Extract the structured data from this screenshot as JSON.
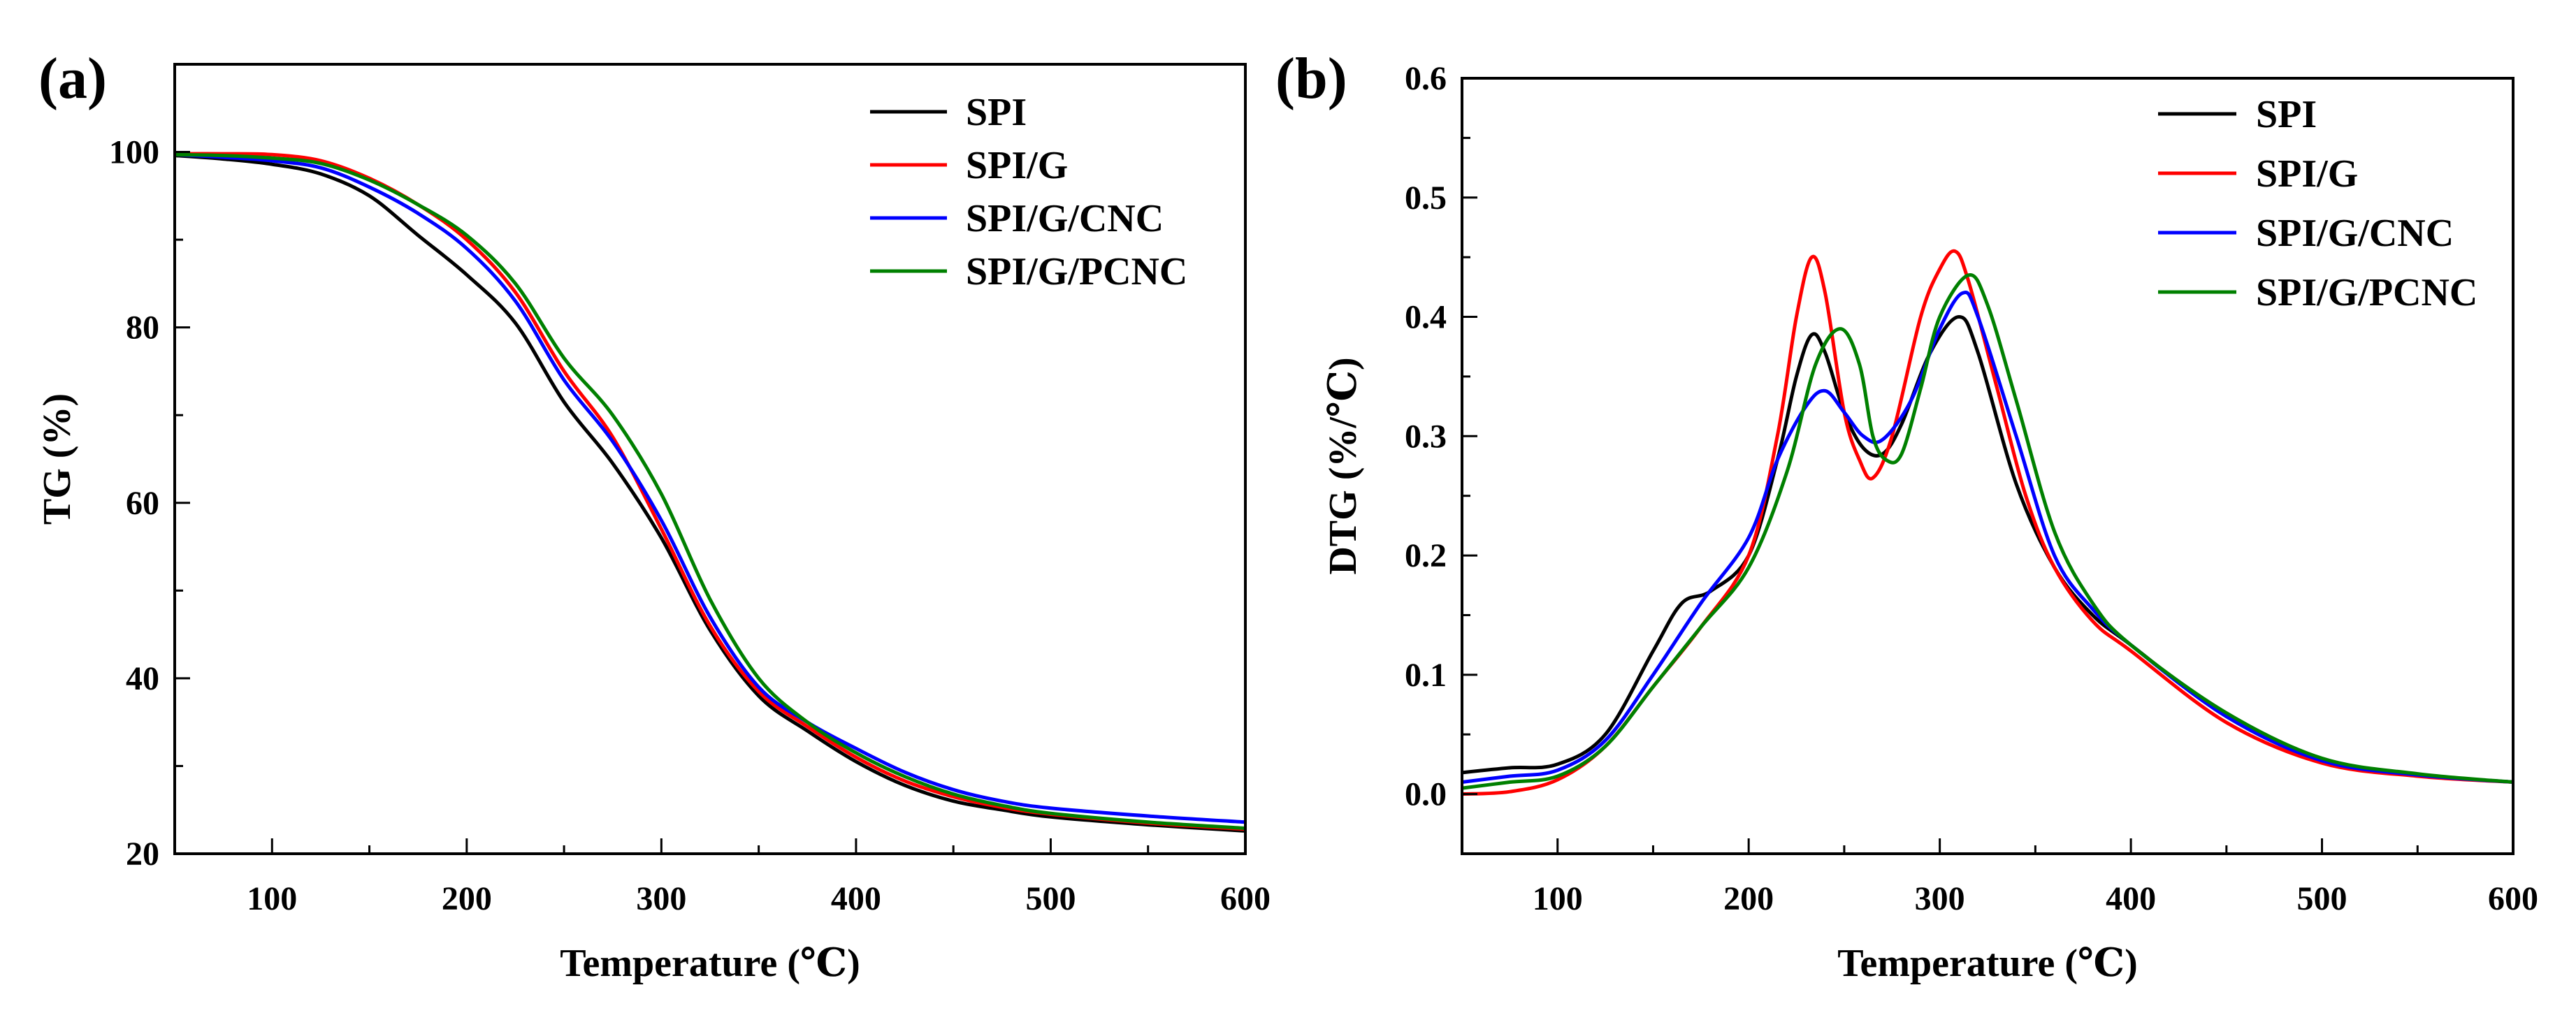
{
  "chart_data": [
    {
      "type": "line",
      "panel_label": "(a)",
      "xlabel": "Temperature (℃)",
      "ylabel": "TG (%)",
      "xlim": [
        50,
        600
      ],
      "ylim": [
        20,
        110
      ],
      "xticks": [
        100,
        200,
        300,
        400,
        500,
        600
      ],
      "yticks": [
        20,
        40,
        60,
        80,
        100
      ],
      "legend_position": "top-right",
      "series": [
        {
          "name": "SPI",
          "color": "#000000",
          "x": [
            50,
            75,
            100,
            125,
            150,
            175,
            200,
            225,
            250,
            275,
            300,
            325,
            350,
            375,
            400,
            425,
            450,
            475,
            500,
            550,
            600
          ],
          "y": [
            99.6,
            99.2,
            98.6,
            97.5,
            95,
            90.5,
            86,
            80.5,
            71.5,
            64.5,
            56,
            45.5,
            38,
            34,
            30.5,
            27.8,
            26,
            25,
            24.2,
            23.3,
            22.6
          ]
        },
        {
          "name": "SPI/G",
          "color": "#ff0000",
          "x": [
            50,
            75,
            100,
            125,
            150,
            175,
            200,
            225,
            250,
            275,
            300,
            325,
            350,
            375,
            400,
            425,
            450,
            475,
            500,
            550,
            600
          ],
          "y": [
            99.8,
            99.8,
            99.7,
            99,
            97,
            94,
            90,
            84,
            75,
            67.5,
            57,
            46,
            38.5,
            34.5,
            31,
            28.3,
            26.5,
            25.3,
            24.5,
            23.5,
            22.8
          ]
        },
        {
          "name": "SPI/G/CNC",
          "color": "#0000ff",
          "x": [
            50,
            75,
            100,
            125,
            150,
            175,
            200,
            225,
            250,
            275,
            300,
            325,
            350,
            375,
            400,
            425,
            450,
            475,
            500,
            550,
            600
          ],
          "y": [
            99.7,
            99.4,
            99,
            98.2,
            96,
            93,
            89,
            83,
            74,
            67,
            58,
            47,
            39,
            35,
            32,
            29.3,
            27.3,
            26,
            25.2,
            24.3,
            23.6
          ]
        },
        {
          "name": "SPI/G/PCNC",
          "color": "#008000",
          "x": [
            50,
            75,
            100,
            125,
            150,
            175,
            200,
            225,
            250,
            275,
            300,
            325,
            350,
            375,
            400,
            425,
            450,
            475,
            500,
            550,
            600
          ],
          "y": [
            99.7,
            99.6,
            99.3,
            98.7,
            96.8,
            94,
            90.5,
            85,
            76.5,
            70,
            61,
            49,
            40,
            35,
            31.5,
            28.8,
            26.8,
            25.5,
            24.6,
            23.6,
            22.9
          ]
        }
      ]
    },
    {
      "type": "line",
      "panel_label": "(b)",
      "xlabel": "Temperature (℃)",
      "ylabel": "DTG (%/℃)",
      "xlim": [
        50,
        600
      ],
      "ylim": [
        -0.05,
        0.6
      ],
      "xticks": [
        100,
        200,
        300,
        400,
        500,
        600
      ],
      "yticks": [
        0.0,
        0.1,
        0.2,
        0.3,
        0.4,
        0.5,
        0.6
      ],
      "legend_position": "top-right",
      "series": [
        {
          "name": "SPI",
          "color": "#000000",
          "x": [
            50,
            75,
            100,
            125,
            150,
            165,
            180,
            200,
            215,
            225,
            233,
            240,
            250,
            260,
            270,
            280,
            295,
            310,
            320,
            340,
            360,
            380,
            400,
            450,
            500,
            550,
            600
          ],
          "y": [
            0.018,
            0.022,
            0.025,
            0.05,
            0.12,
            0.16,
            0.17,
            0.2,
            0.28,
            0.35,
            0.385,
            0.37,
            0.32,
            0.29,
            0.285,
            0.31,
            0.37,
            0.4,
            0.37,
            0.26,
            0.19,
            0.15,
            0.125,
            0.065,
            0.028,
            0.016,
            0.01
          ]
        },
        {
          "name": "SPI/G",
          "color": "#ff0000",
          "x": [
            50,
            75,
            100,
            125,
            150,
            175,
            200,
            215,
            225,
            233,
            240,
            250,
            258,
            265,
            275,
            290,
            300,
            308,
            315,
            330,
            345,
            360,
            380,
            400,
            450,
            500,
            550,
            600
          ],
          "y": [
            0.0,
            0.002,
            0.012,
            0.04,
            0.09,
            0.14,
            0.2,
            0.3,
            0.4,
            0.45,
            0.42,
            0.32,
            0.28,
            0.265,
            0.3,
            0.4,
            0.44,
            0.455,
            0.43,
            0.34,
            0.25,
            0.19,
            0.145,
            0.12,
            0.06,
            0.026,
            0.015,
            0.01
          ]
        },
        {
          "name": "SPI/G/CNC",
          "color": "#0000ff",
          "x": [
            50,
            75,
            100,
            125,
            150,
            175,
            200,
            215,
            230,
            240,
            250,
            260,
            270,
            285,
            300,
            312,
            320,
            340,
            360,
            380,
            400,
            450,
            500,
            550,
            600
          ],
          "y": [
            0.01,
            0.015,
            0.02,
            0.045,
            0.1,
            0.16,
            0.215,
            0.28,
            0.325,
            0.338,
            0.32,
            0.3,
            0.297,
            0.33,
            0.39,
            0.42,
            0.4,
            0.3,
            0.2,
            0.155,
            0.125,
            0.065,
            0.028,
            0.016,
            0.01
          ]
        },
        {
          "name": "SPI/G/PCNC",
          "color": "#008000",
          "x": [
            50,
            75,
            100,
            125,
            150,
            175,
            200,
            220,
            235,
            248,
            258,
            265,
            272,
            280,
            290,
            300,
            315,
            325,
            340,
            360,
            380,
            400,
            450,
            500,
            550,
            600
          ],
          "y": [
            0.005,
            0.01,
            0.015,
            0.04,
            0.09,
            0.14,
            0.19,
            0.27,
            0.36,
            0.39,
            0.36,
            0.3,
            0.28,
            0.285,
            0.34,
            0.4,
            0.435,
            0.41,
            0.33,
            0.22,
            0.16,
            0.125,
            0.068,
            0.03,
            0.017,
            0.01
          ]
        }
      ]
    }
  ]
}
